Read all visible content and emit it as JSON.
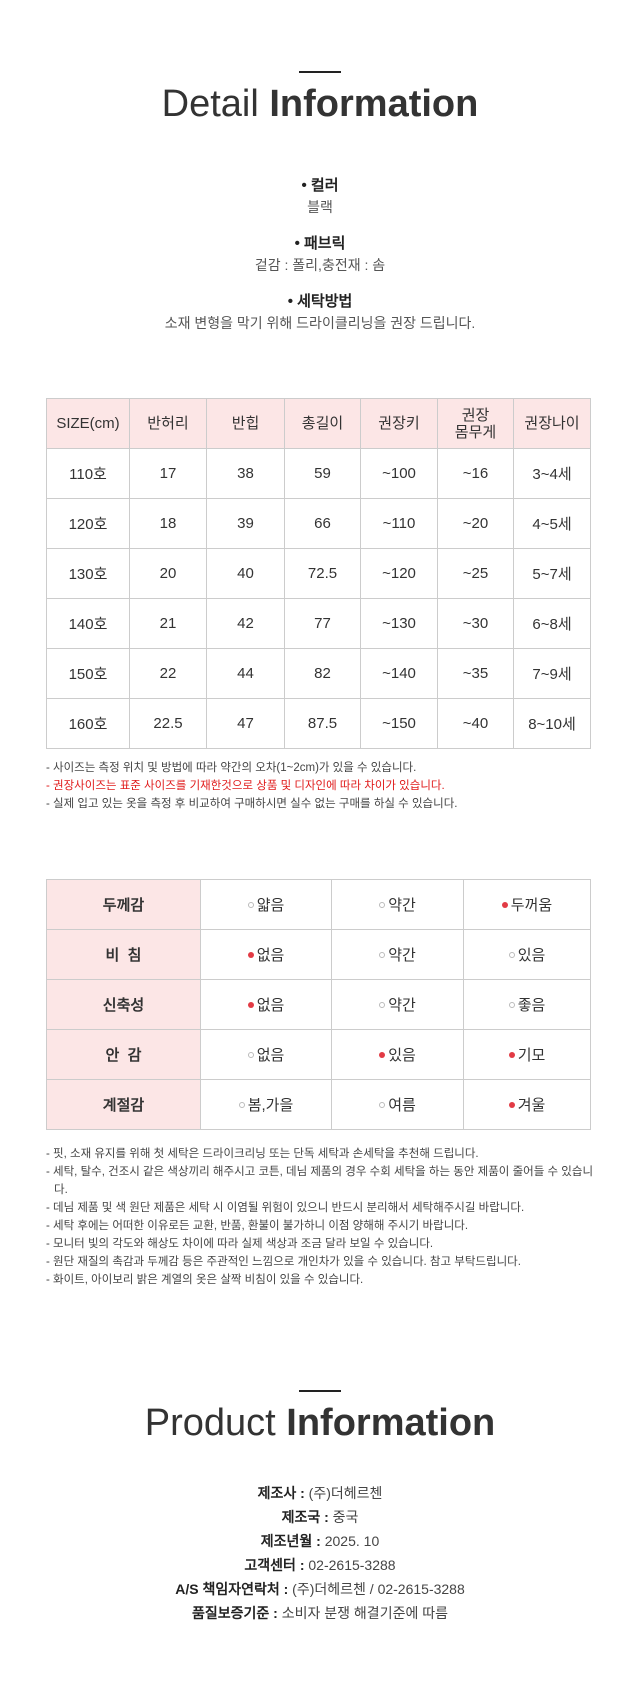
{
  "detail": {
    "title_light": "Detail",
    "title_bold": "Information",
    "items": [
      {
        "label": "• 컬러",
        "value": "블랙"
      },
      {
        "label": "• 패브릭",
        "value": "겉감 : 폴리,충전재 : 솜"
      },
      {
        "label": "• 세탁방법",
        "value": "소재 변형을 막기 위해 드라이클리닝을 권장 드립니다."
      }
    ]
  },
  "size_table": {
    "headers": [
      "SIZE(cm)",
      "반허리",
      "반힙",
      "총길이",
      "권장키",
      "권장\n몸무게",
      "권장나이"
    ],
    "rows": [
      [
        "110호",
        "17",
        "38",
        "59",
        "~100",
        "~16",
        "3~4세"
      ],
      [
        "120호",
        "18",
        "39",
        "66",
        "~110",
        "~20",
        "4~5세"
      ],
      [
        "130호",
        "20",
        "40",
        "72.5",
        "~120",
        "~25",
        "5~7세"
      ],
      [
        "140호",
        "21",
        "42",
        "77",
        "~130",
        "~30",
        "6~8세"
      ],
      [
        "150호",
        "22",
        "44",
        "82",
        "~140",
        "~35",
        "7~9세"
      ],
      [
        "160호",
        "22.5",
        "47",
        "87.5",
        "~150",
        "~40",
        "8~10세"
      ]
    ],
    "notes": [
      {
        "text": "- 사이즈는 측정 위치 및 방법에 따라 약간의 오차(1~2cm)가 있을 수 있습니다.",
        "highlight": false
      },
      {
        "text": "- 권장사이즈는 표준 사이즈를 기재한것으로 상품 및 디자인에 따라 차이가 있습니다.",
        "highlight": true
      },
      {
        "text": "- 실제 입고 있는 옷을 측정 후 비교하여 구매하시면 실수 없는 구매를 하실 수 있습니다.",
        "highlight": false
      }
    ]
  },
  "property_table": {
    "rows": [
      {
        "label": "두께감",
        "options": [
          {
            "label": "얇음",
            "selected": false
          },
          {
            "label": "약간",
            "selected": false
          },
          {
            "label": "두꺼움",
            "selected": true
          }
        ]
      },
      {
        "label": "비  침",
        "options": [
          {
            "label": "없음",
            "selected": true
          },
          {
            "label": "약간",
            "selected": false
          },
          {
            "label": "있음",
            "selected": false
          }
        ]
      },
      {
        "label": "신축성",
        "options": [
          {
            "label": "없음",
            "selected": true
          },
          {
            "label": "약간",
            "selected": false
          },
          {
            "label": "좋음",
            "selected": false
          }
        ]
      },
      {
        "label": "안  감",
        "options": [
          {
            "label": "없음",
            "selected": false
          },
          {
            "label": "있음",
            "selected": true
          },
          {
            "label": "기모",
            "selected": true
          }
        ]
      },
      {
        "label": "계절감",
        "options": [
          {
            "label": "봄,가을",
            "selected": false
          },
          {
            "label": "여름",
            "selected": false
          },
          {
            "label": "겨울",
            "selected": true
          }
        ]
      }
    ],
    "notes": [
      "- 핏, 소재 유지를 위해 첫 세탁은 드라이크리닝 또는 단독 세탁과 손세탁을 추천해 드립니다.",
      "- 세탁, 탈수, 건조시 같은 색상끼리 해주시고 코튼, 데님 제품의 경우 수회 세탁을 하는 동안 제품이 줄어들 수 있습니다.",
      "- 데님 제품 및 색 원단 제품은 세탁 시 이염될 위험이 있으니 반드시 분리해서 세탁해주시길 바랍니다.",
      "- 세탁 후에는 어떠한 이유로든 교환, 반품, 환불이 불가하니 이점 양해해 주시기 바랍니다.",
      "- 모니터 빛의 각도와 해상도 차이에 따라 실제 색상과 조금 달라 보일 수 있습니다.",
      "- 원단 재질의 촉감과 두께감 등은 주관적인 느낌으로 개인차가 있을 수 있습니다. 참고 부탁드립니다.",
      "- 화이트, 아이보리 밝은 계열의 옷은 살짝 비침이 있을 수 있습니다."
    ]
  },
  "product": {
    "title_light": "Product",
    "title_bold": "Information",
    "items": [
      {
        "label": "제조사 :",
        "value": "(주)더헤르첸"
      },
      {
        "label": "제조국 :",
        "value": "중국"
      },
      {
        "label": "제조년월 :",
        "value": "2025. 10"
      },
      {
        "label": "고객센터 :",
        "value": "02-2615-3288"
      },
      {
        "label": "A/S 책임자연락처 :",
        "value": "(주)더헤르첸 / 02-2615-3288"
      },
      {
        "label": "품질보증기준 :",
        "value": "소비자 분쟁 해결기준에 따름"
      }
    ]
  }
}
